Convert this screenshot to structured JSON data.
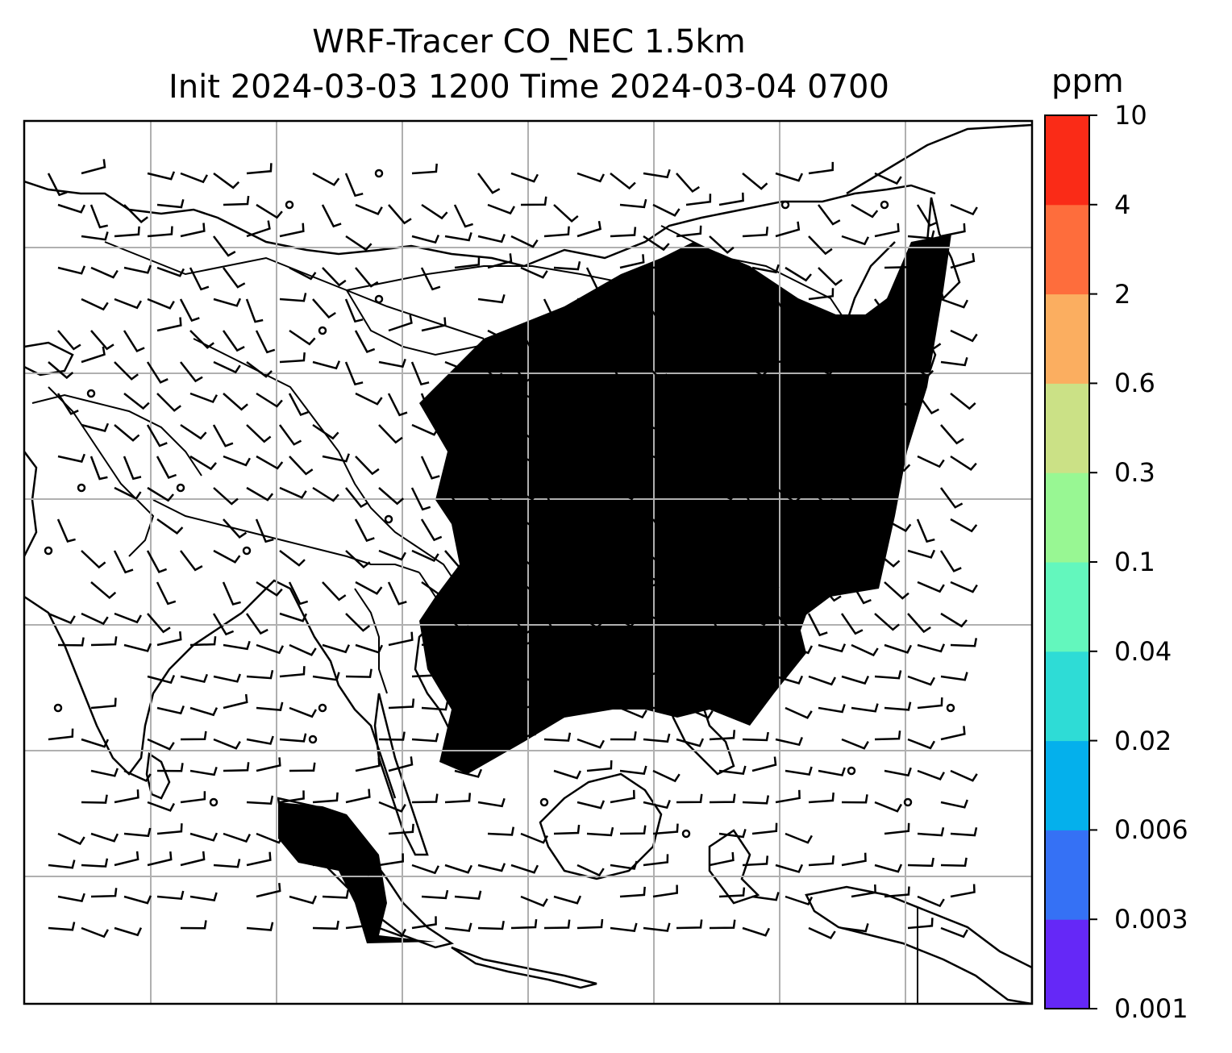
{
  "title": {
    "line1": "WRF-Tracer CO_NEC 1.5km",
    "line2": "Init 2024-03-03 1200 Time 2024-03-04 0700"
  },
  "colorbar": {
    "unit": "ppm",
    "levels": [
      "0.001",
      "0.003",
      "0.006",
      "0.02",
      "0.04",
      "0.1",
      "0.3",
      "0.6",
      "2",
      "4",
      "10"
    ],
    "colors": [
      "#6528f7",
      "#3571f5",
      "#04b0ec",
      "#2edcd6",
      "#63f7bd",
      "#98f793",
      "#cbe186",
      "#fbae60",
      "#fe6d3c",
      "#fa2b17"
    ]
  },
  "map": {
    "field": "CO_NEC tracer concentration at 1.5km",
    "overlays": [
      "coastlines",
      "country borders",
      "lat/lon gridlines",
      "wind barbs"
    ],
    "colors": {
      "land_lines": "#000000",
      "gridlines": "#b0b0b0",
      "frame": "#000000"
    }
  }
}
